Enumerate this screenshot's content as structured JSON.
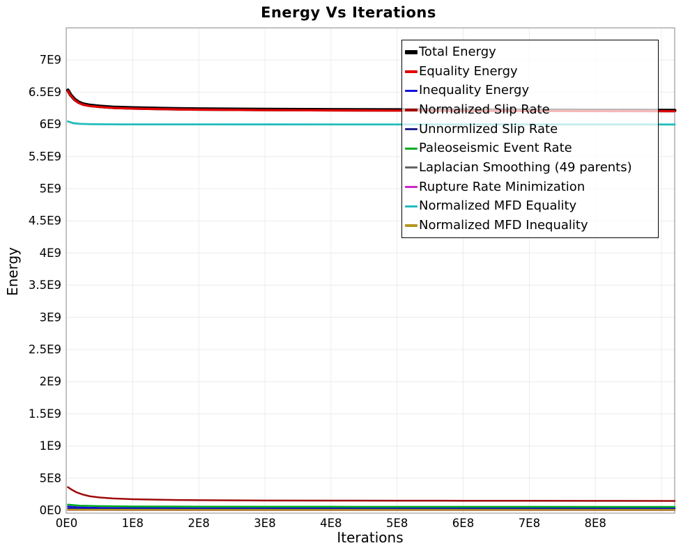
{
  "chart_data": {
    "type": "line",
    "title": "Energy Vs Iterations",
    "xlabel": "Iterations",
    "ylabel": "Energy",
    "xlim": [
      0,
      920000000
    ],
    "ylim": [
      0,
      7500000000
    ],
    "grid": true,
    "legend_position": "top-right-inside",
    "x_ticks": [
      {
        "value": 0,
        "label": "0E0"
      },
      {
        "value": 100000000,
        "label": "1E8"
      },
      {
        "value": 200000000,
        "label": "2E8"
      },
      {
        "value": 300000000,
        "label": "3E8"
      },
      {
        "value": 400000000,
        "label": "4E8"
      },
      {
        "value": 500000000,
        "label": "5E8"
      },
      {
        "value": 600000000,
        "label": "6E8"
      },
      {
        "value": 700000000,
        "label": "7E8"
      },
      {
        "value": 800000000,
        "label": "8E8"
      }
    ],
    "x_gridlines": [
      100000000,
      200000000,
      300000000,
      400000000,
      500000000,
      600000000,
      700000000,
      800000000,
      900000000
    ],
    "y_ticks": [
      {
        "value": 0,
        "label": "0E0"
      },
      {
        "value": 500000000,
        "label": "5E8"
      },
      {
        "value": 1000000000,
        "label": "1E9"
      },
      {
        "value": 1500000000,
        "label": "1.5E9"
      },
      {
        "value": 2000000000,
        "label": "2E9"
      },
      {
        "value": 2500000000,
        "label": "2.5E9"
      },
      {
        "value": 3000000000,
        "label": "3E9"
      },
      {
        "value": 3500000000,
        "label": "3.5E9"
      },
      {
        "value": 4000000000,
        "label": "4E9"
      },
      {
        "value": 4500000000,
        "label": "4.5E9"
      },
      {
        "value": 5000000000,
        "label": "5E9"
      },
      {
        "value": 5500000000,
        "label": "5.5E9"
      },
      {
        "value": 6000000000,
        "label": "6E9"
      },
      {
        "value": 6500000000,
        "label": "6.5E9"
      },
      {
        "value": 7000000000,
        "label": "7E9"
      }
    ],
    "y_gridlines": [
      500000000,
      1000000000,
      1500000000,
      2000000000,
      2500000000,
      3000000000,
      3500000000,
      4000000000,
      4500000000,
      5000000000,
      5500000000,
      6000000000,
      6500000000,
      7000000000
    ],
    "series": [
      {
        "name": "Total Energy",
        "color": "#000000",
        "width": 5,
        "points": [
          [
            2000000,
            6530000000
          ],
          [
            6000000,
            6460000000
          ],
          [
            12000000,
            6390000000
          ],
          [
            18000000,
            6345000000
          ],
          [
            25000000,
            6315000000
          ],
          [
            35000000,
            6295000000
          ],
          [
            50000000,
            6280000000
          ],
          [
            70000000,
            6265000000
          ],
          [
            100000000,
            6255000000
          ],
          [
            150000000,
            6245000000
          ],
          [
            200000000,
            6238000000
          ],
          [
            300000000,
            6231000000
          ],
          [
            400000000,
            6227000000
          ],
          [
            500000000,
            6224000000
          ],
          [
            600000000,
            6221000000
          ],
          [
            700000000,
            6219000000
          ],
          [
            800000000,
            6217000000
          ],
          [
            920000000,
            6215000000
          ]
        ]
      },
      {
        "name": "Equality Energy",
        "color": "#E00000",
        "width": 3.2,
        "points": [
          [
            2000000,
            6520000000
          ],
          [
            6000000,
            6450000000
          ],
          [
            12000000,
            6380000000
          ],
          [
            18000000,
            6335000000
          ],
          [
            25000000,
            6305000000
          ],
          [
            35000000,
            6285000000
          ],
          [
            50000000,
            6270000000
          ],
          [
            70000000,
            6255000000
          ],
          [
            100000000,
            6245000000
          ],
          [
            150000000,
            6235000000
          ],
          [
            200000000,
            6228000000
          ],
          [
            300000000,
            6221000000
          ],
          [
            400000000,
            6217000000
          ],
          [
            500000000,
            6214000000
          ],
          [
            600000000,
            6211000000
          ],
          [
            700000000,
            6209000000
          ],
          [
            800000000,
            6207000000
          ],
          [
            920000000,
            6205000000
          ]
        ]
      },
      {
        "name": "Inequality Energy",
        "color": "#1212DC",
        "width": 2.5,
        "points": [
          [
            2000000,
            60000000
          ],
          [
            20000000,
            46000000
          ],
          [
            50000000,
            39000000
          ],
          [
            100000000,
            35000000
          ],
          [
            200000000,
            33000000
          ],
          [
            400000000,
            32000000
          ],
          [
            920000000,
            31000000
          ]
        ]
      },
      {
        "name": "Normalized Slip Rate",
        "color": "#A00A0A",
        "width": 2.5,
        "points": [
          [
            2000000,
            360000000
          ],
          [
            8000000,
            320000000
          ],
          [
            15000000,
            280000000
          ],
          [
            25000000,
            245000000
          ],
          [
            35000000,
            220000000
          ],
          [
            50000000,
            200000000
          ],
          [
            70000000,
            185000000
          ],
          [
            100000000,
            173000000
          ],
          [
            150000000,
            163000000
          ],
          [
            200000000,
            158000000
          ],
          [
            300000000,
            153000000
          ],
          [
            400000000,
            151000000
          ],
          [
            500000000,
            150000000
          ],
          [
            600000000,
            149000000
          ],
          [
            700000000,
            148000000
          ],
          [
            800000000,
            147000000
          ],
          [
            920000000,
            146000000
          ]
        ]
      },
      {
        "name": "Unnormlized Slip Rate",
        "color": "#20208C",
        "width": 2.2,
        "points": [
          [
            2000000,
            32000000
          ],
          [
            30000000,
            24000000
          ],
          [
            80000000,
            21000000
          ],
          [
            200000000,
            19000000
          ],
          [
            920000000,
            18000000
          ]
        ]
      },
      {
        "name": "Paleoseismic Event Rate",
        "color": "#00AC1E",
        "width": 2.5,
        "points": [
          [
            2000000,
            90000000
          ],
          [
            20000000,
            74000000
          ],
          [
            50000000,
            66000000
          ],
          [
            100000000,
            61000000
          ],
          [
            200000000,
            58000000
          ],
          [
            400000000,
            56000000
          ],
          [
            920000000,
            54000000
          ]
        ]
      },
      {
        "name": "Laplacian Smoothing (49 parents)",
        "color": "#646464",
        "width": 2.2,
        "points": [
          [
            2000000,
            7000000
          ],
          [
            100000000,
            5000000
          ],
          [
            920000000,
            4000000
          ]
        ]
      },
      {
        "name": "Rupture Rate Minimization",
        "color": "#C828C8",
        "width": 2.2,
        "points": [
          [
            2000000,
            3000000
          ],
          [
            920000000,
            2000000
          ]
        ]
      },
      {
        "name": "Normalized MFD Equality",
        "color": "#22BCBC",
        "width": 2.8,
        "points": [
          [
            2000000,
            6045000000
          ],
          [
            10000000,
            6020000000
          ],
          [
            20000000,
            6008000000
          ],
          [
            40000000,
            6002000000
          ],
          [
            80000000,
            6000000000
          ],
          [
            300000000,
            5999000000
          ],
          [
            920000000,
            5998000000
          ]
        ]
      },
      {
        "name": "Normalized MFD Inequality",
        "color": "#B4961E",
        "width": 2.5,
        "points": [
          [
            2000000,
            10000000
          ],
          [
            50000000,
            8000000
          ],
          [
            920000000,
            7000000
          ]
        ]
      }
    ]
  },
  "colors": {
    "grid": "#ececec",
    "plot_border": "#999999",
    "legend_border": "#000000",
    "tick_text": "#000000"
  }
}
